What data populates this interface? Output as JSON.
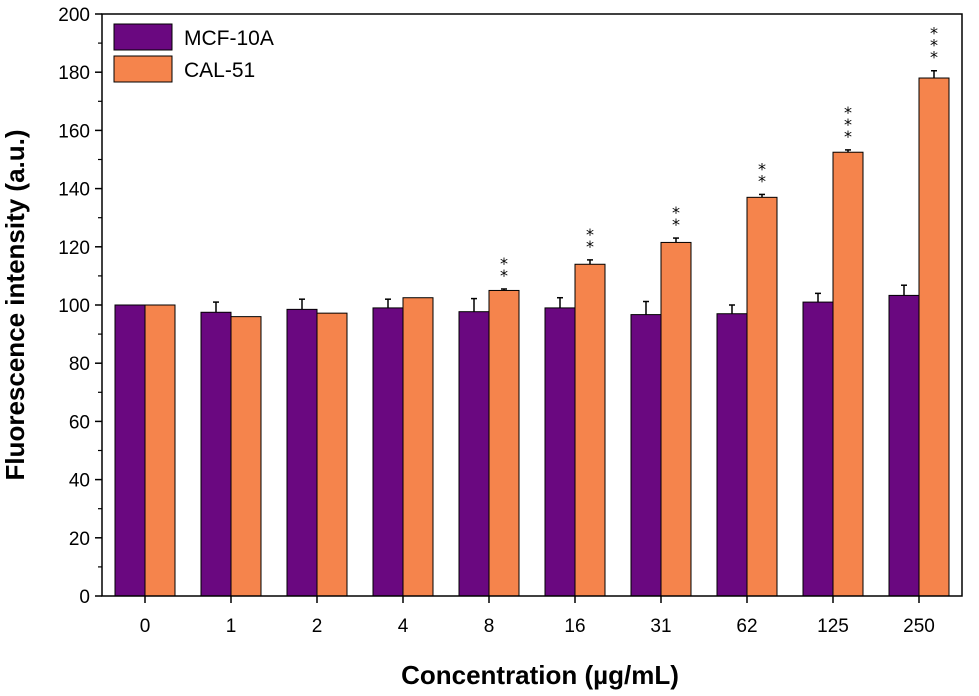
{
  "chart_data": {
    "type": "bar",
    "categories": [
      "0",
      "1",
      "2",
      "4",
      "8",
      "16",
      "31",
      "62",
      "125",
      "250"
    ],
    "series": [
      {
        "name": "MCF-10A",
        "color": "#6a0880",
        "values": [
          100,
          97.5,
          98.5,
          99,
          97.7,
          99,
          96.7,
          97,
          101,
          103.3
        ],
        "errors": [
          0,
          3.5,
          3.5,
          3,
          4.5,
          3.5,
          4.5,
          3,
          3,
          3.5
        ]
      },
      {
        "name": "CAL-51",
        "color": "#f5844c",
        "values": [
          100,
          96,
          97.2,
          102.5,
          105,
          114,
          121.5,
          137,
          152.5,
          178
        ],
        "errors": [
          0,
          0,
          0,
          0,
          0.5,
          1.5,
          1.5,
          1,
          0.8,
          2.5
        ]
      }
    ],
    "annotations": [
      "",
      "",
      "",
      "",
      "**",
      "**",
      "**",
      "**",
      "***",
      "***"
    ],
    "xlabel": "Concentration (µg/mL)",
    "ylabel": "Fluorescence intensity (a.u.)",
    "ylim": [
      0,
      200
    ],
    "yticks": [
      0,
      20,
      40,
      60,
      80,
      100,
      120,
      140,
      160,
      180,
      200
    ],
    "legend_position": "top-left",
    "grid": false
  }
}
